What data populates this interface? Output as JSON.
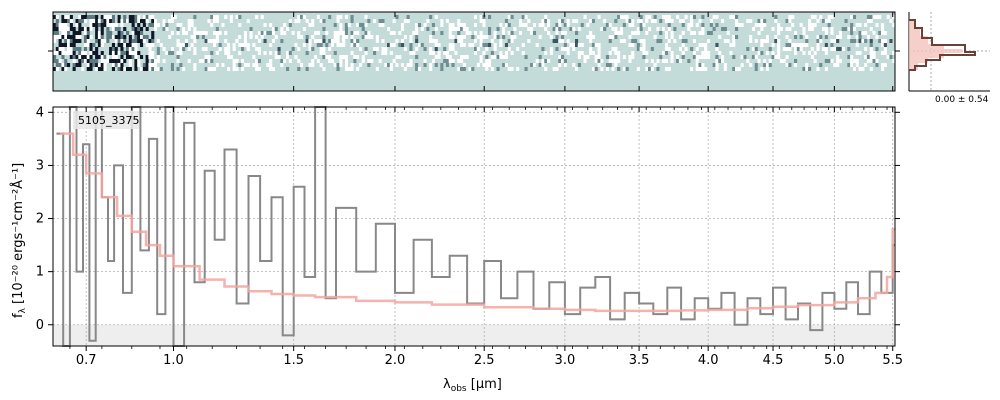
{
  "chart_data": {
    "type": "line",
    "object_label": "5105_3375",
    "xlabel_main": "λ",
    "xlabel_sub": "obs",
    "xlabel_unit": "[μm]",
    "ylabel_main": "f",
    "ylabel_sub": "λ",
    "ylabel_unit": "[10⁻²⁰ ergs⁻¹cm⁻²Å⁻¹]",
    "xlim": [
      0.6,
      5.52
    ],
    "xscale": "sqrt",
    "ylim": [
      -0.4,
      4.1
    ],
    "grid": true,
    "xticks": [
      {
        "v": 0.7,
        "label": "0.7"
      },
      {
        "v": 1.0,
        "label": "1.0"
      },
      {
        "v": 1.5,
        "label": "1.5"
      },
      {
        "v": 2.0,
        "label": "2.0"
      },
      {
        "v": 2.5,
        "label": "2.5"
      },
      {
        "v": 3.0,
        "label": "3.0"
      },
      {
        "v": 3.5,
        "label": "3.5"
      },
      {
        "v": 4.0,
        "label": "4.0"
      },
      {
        "v": 4.5,
        "label": "4.5"
      },
      {
        "v": 5.0,
        "label": "5.0"
      },
      {
        "v": 5.5,
        "label": "5.5"
      }
    ],
    "yticks": [
      {
        "v": 0,
        "label": "0"
      },
      {
        "v": 1,
        "label": "1"
      },
      {
        "v": 2,
        "label": "2"
      },
      {
        "v": 3,
        "label": "3"
      },
      {
        "v": 4,
        "label": "4"
      }
    ],
    "series": [
      {
        "role": "model",
        "color": "#f4a6a0",
        "x": [
          0.62,
          0.66,
          0.7,
          0.75,
          0.8,
          0.85,
          0.9,
          0.95,
          1.0,
          1.1,
          1.2,
          1.3,
          1.4,
          1.5,
          1.6,
          1.8,
          2.0,
          2.2,
          2.5,
          2.8,
          3.0,
          3.2,
          3.5,
          3.8,
          4.0,
          4.3,
          4.5,
          4.7,
          5.0,
          5.2,
          5.35,
          5.45,
          5.5
        ],
        "y": [
          3.6,
          3.2,
          2.85,
          2.4,
          2.05,
          1.75,
          1.5,
          1.3,
          1.1,
          0.85,
          0.72,
          0.63,
          0.58,
          0.55,
          0.52,
          0.45,
          0.42,
          0.38,
          0.33,
          0.3,
          0.28,
          0.26,
          0.26,
          0.27,
          0.28,
          0.31,
          0.34,
          0.37,
          0.42,
          0.5,
          0.6,
          0.9,
          1.8
        ]
      },
      {
        "role": "data",
        "color": "#888888",
        "x": [
          0.61,
          0.63,
          0.65,
          0.67,
          0.69,
          0.71,
          0.73,
          0.75,
          0.77,
          0.79,
          0.82,
          0.85,
          0.88,
          0.91,
          0.94,
          0.97,
          1.0,
          1.04,
          1.08,
          1.12,
          1.16,
          1.2,
          1.25,
          1.3,
          1.35,
          1.4,
          1.45,
          1.5,
          1.55,
          1.6,
          1.65,
          1.7,
          1.8,
          1.9,
          2.0,
          2.1,
          2.2,
          2.3,
          2.4,
          2.5,
          2.6,
          2.7,
          2.8,
          2.9,
          3.0,
          3.1,
          3.2,
          3.3,
          3.4,
          3.5,
          3.6,
          3.7,
          3.8,
          3.9,
          4.0,
          4.1,
          4.2,
          4.3,
          4.4,
          4.5,
          4.6,
          4.7,
          4.8,
          4.9,
          5.0,
          5.1,
          5.2,
          5.3,
          5.4,
          5.5
        ],
        "y": [
          3.6,
          -0.4,
          4.1,
          1.0,
          3.4,
          -0.3,
          4.1,
          2.4,
          1.2,
          3.0,
          0.6,
          4.1,
          1.4,
          3.5,
          0.2,
          4.1,
          -0.4,
          3.8,
          0.8,
          2.9,
          1.6,
          3.3,
          0.4,
          2.8,
          1.2,
          2.4,
          -0.2,
          2.6,
          0.9,
          4.1,
          0.5,
          2.2,
          1.0,
          1.9,
          0.6,
          1.6,
          0.9,
          1.3,
          0.4,
          1.2,
          0.5,
          1.0,
          0.3,
          0.8,
          0.2,
          0.7,
          0.9,
          0.1,
          0.6,
          0.4,
          0.2,
          0.7,
          0.1,
          0.5,
          0.3,
          0.6,
          0.0,
          0.5,
          0.2,
          0.7,
          0.1,
          0.4,
          -0.1,
          0.6,
          0.3,
          0.8,
          0.2,
          1.0,
          0.6,
          1.5
        ]
      }
    ],
    "inset": {
      "label": "0.00 ± 0.54"
    }
  }
}
